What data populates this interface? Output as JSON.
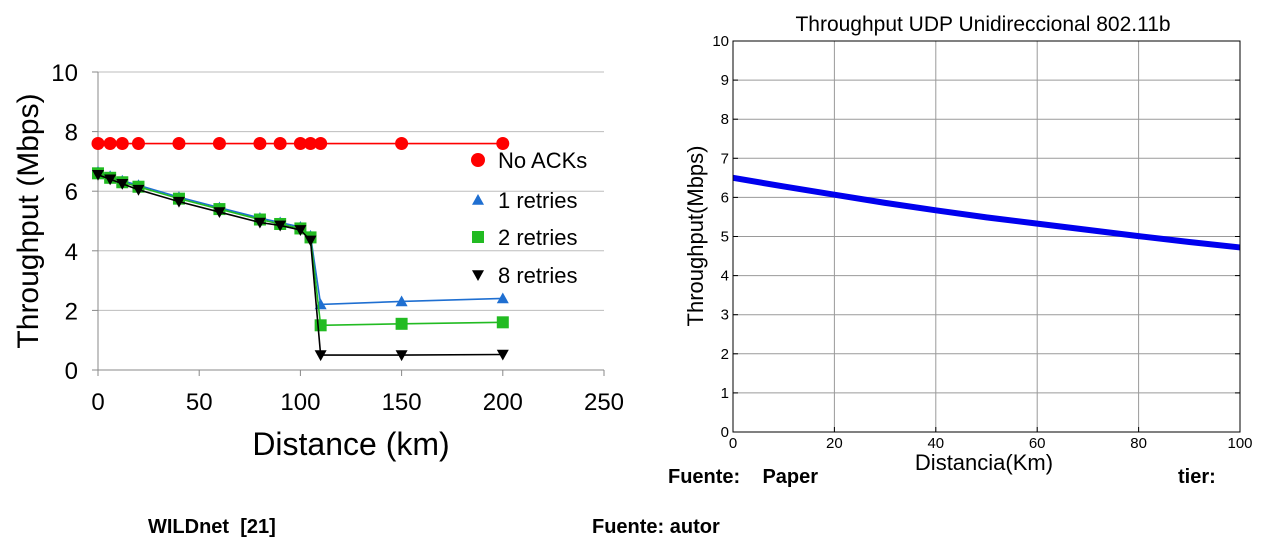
{
  "captions": {
    "left_line1": "Fuente:    Paper",
    "right_tail": "tier:",
    "left_line2": "WILDnet  [21]",
    "right_line2": "Fuente: autor"
  },
  "chart_data": [
    {
      "type": "line",
      "title": "",
      "xlabel": "Distance (km)",
      "ylabel": "Throughput (Mbps)",
      "xlim": [
        0,
        250
      ],
      "ylim": [
        0,
        10
      ],
      "xticks": [
        0,
        50,
        100,
        150,
        200,
        250
      ],
      "yticks": [
        0,
        2,
        4,
        6,
        8,
        10
      ],
      "grid": "horizontal",
      "legend": "right",
      "series": [
        {
          "name": "No ACKs",
          "color": "#ff0000",
          "line_color": "#ff0000",
          "marker": "circle",
          "x": [
            0,
            6,
            12,
            20,
            40,
            60,
            80,
            90,
            100,
            105,
            110,
            150,
            200
          ],
          "y": [
            7.6,
            7.6,
            7.6,
            7.6,
            7.6,
            7.6,
            7.6,
            7.6,
            7.6,
            7.6,
            7.6,
            7.6,
            7.6
          ]
        },
        {
          "name": "1 retries",
          "color": "#1f6fd1",
          "line_color": "#1f6fd1",
          "marker": "triangle-up",
          "x": [
            0,
            6,
            12,
            20,
            40,
            60,
            80,
            90,
            100,
            105,
            110,
            150,
            200
          ],
          "y": [
            6.65,
            6.5,
            6.35,
            6.2,
            5.8,
            5.45,
            5.1,
            4.95,
            4.8,
            4.5,
            2.2,
            2.3,
            2.4
          ]
        },
        {
          "name": "2 retries",
          "color": "#22bb22",
          "line_color": "#22bb22",
          "marker": "square",
          "x": [
            0,
            6,
            12,
            20,
            40,
            60,
            80,
            90,
            100,
            105,
            110,
            150,
            200
          ],
          "y": [
            6.6,
            6.45,
            6.3,
            6.15,
            5.75,
            5.4,
            5.05,
            4.9,
            4.75,
            4.45,
            1.5,
            1.55,
            1.6
          ]
        },
        {
          "name": "8 retries",
          "color": "#000000",
          "line_color": "#000000",
          "marker": "triangle-down",
          "x": [
            0,
            6,
            12,
            20,
            40,
            60,
            80,
            90,
            100,
            105,
            110,
            150,
            200
          ],
          "y": [
            6.55,
            6.4,
            6.25,
            6.05,
            5.65,
            5.3,
            4.95,
            4.85,
            4.7,
            4.35,
            0.5,
            0.5,
            0.52
          ]
        }
      ]
    },
    {
      "type": "line",
      "title": "Throughput UDP Unidireccional 802.11b",
      "xlabel": "Distancia(Km)",
      "ylabel": "Throughput(Mbps)",
      "xlim": [
        0,
        100
      ],
      "ylim": [
        0,
        10
      ],
      "xticks": [
        0,
        20,
        40,
        60,
        80,
        100
      ],
      "yticks": [
        0,
        1,
        2,
        3,
        4,
        5,
        6,
        7,
        8,
        9,
        10
      ],
      "grid": "on",
      "series": [
        {
          "color": "#0000ee",
          "x": [
            0,
            10,
            20,
            30,
            40,
            50,
            60,
            70,
            80,
            90,
            100
          ],
          "y": [
            6.5,
            6.28,
            6.07,
            5.86,
            5.67,
            5.49,
            5.33,
            5.17,
            5.01,
            4.86,
            4.72
          ]
        }
      ]
    }
  ]
}
